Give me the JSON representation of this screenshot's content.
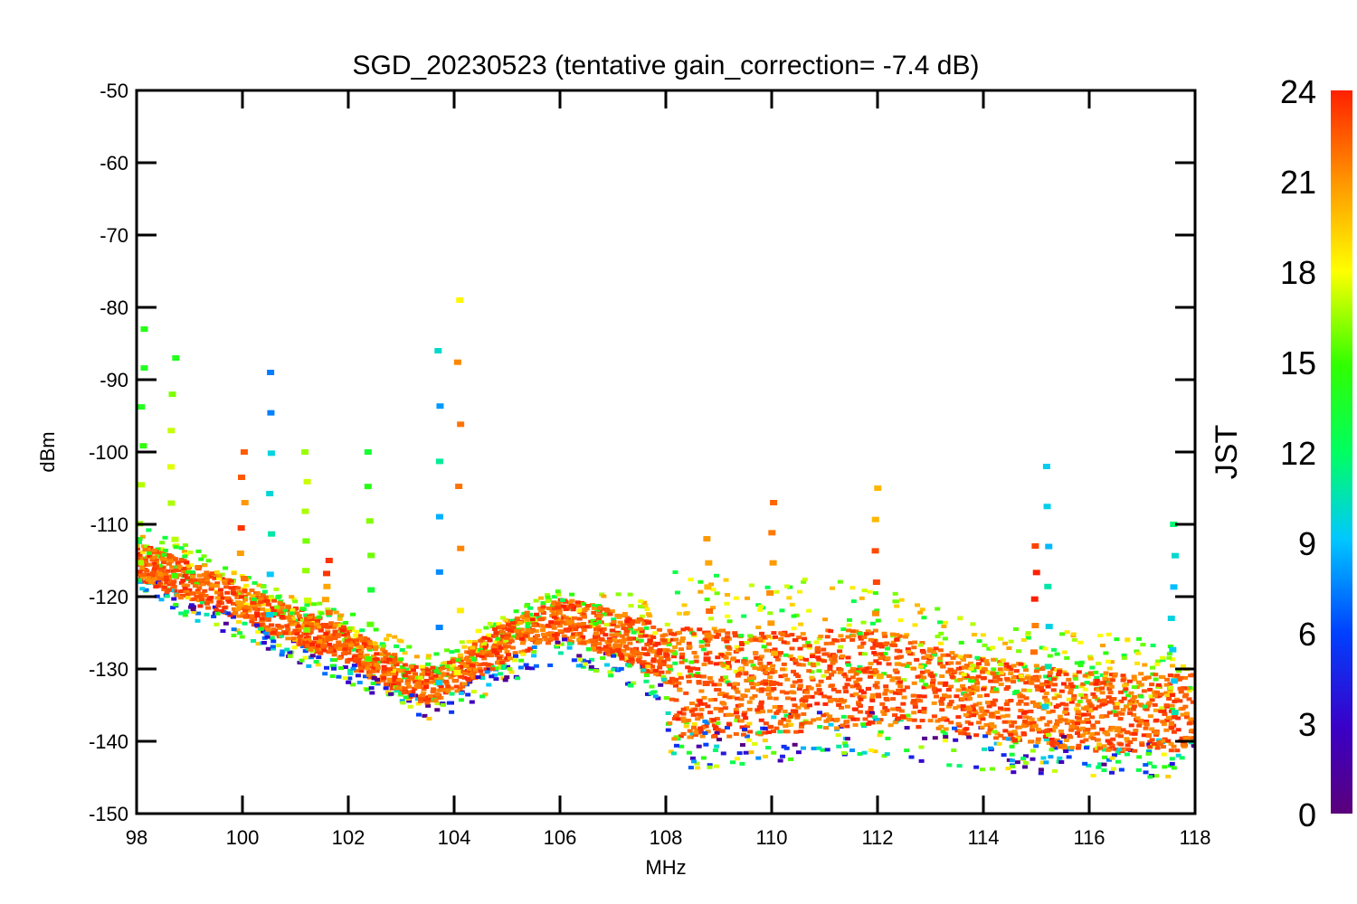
{
  "chart_data": {
    "type": "scatter",
    "title": "SGD_20230523 (tentative gain_correction= -7.4 dB)",
    "xlabel": "MHz",
    "ylabel": "dBm",
    "xlim": [
      98,
      118
    ],
    "ylim": [
      -150,
      -50
    ],
    "x_ticks": [
      "98",
      "100",
      "102",
      "104",
      "106",
      "108",
      "110",
      "112",
      "114",
      "116",
      "118"
    ],
    "y_ticks": [
      "-50",
      "-60",
      "-70",
      "-80",
      "-90",
      "-100",
      "-110",
      "-120",
      "-130",
      "-140",
      "-150"
    ],
    "grid": false,
    "colorbar": {
      "label": "JST",
      "range": [
        0,
        24
      ],
      "ticks": [
        "24",
        "21",
        "18",
        "15",
        "12",
        "9",
        "6",
        "3",
        "0"
      ],
      "colormap": "rainbow"
    },
    "series": [
      {
        "description_color_scale": "JST hour",
        "points_note": "dense scatter; representative envelope below",
        "baseline_envelope": {
          "x": [
            98,
            99,
            100,
            101,
            102,
            103,
            103.5,
            104,
            105,
            106,
            107,
            108,
            108.1,
            110,
            112,
            114,
            116,
            118
          ],
          "upper": [
            -110,
            -113,
            -117,
            -120,
            -122,
            -126,
            -128,
            -127,
            -122,
            -119,
            -119,
            -121,
            -116,
            -117,
            -118,
            -124,
            -125,
            -126
          ],
          "lower": [
            -119,
            -123,
            -126,
            -129,
            -132,
            -135,
            -137,
            -136,
            -132,
            -129,
            -131,
            -135,
            -144,
            -143,
            -142,
            -144,
            -145,
            -145
          ],
          "mid": [
            -115,
            -118,
            -121,
            -124,
            -127,
            -131,
            -132.5,
            -131,
            -126,
            -123,
            -125,
            -128,
            -132,
            -132,
            -131,
            -134,
            -136,
            -136
          ]
        },
        "spikes": [
          {
            "x": 98.1,
            "top": -83,
            "hour": 15
          },
          {
            "x": 98.7,
            "top": -87,
            "hour": 16
          },
          {
            "x": 100.0,
            "top": -100,
            "hour": 22
          },
          {
            "x": 100.5,
            "top": -89,
            "hour": 9
          },
          {
            "x": 101.2,
            "top": -100,
            "hour": 17
          },
          {
            "x": 101.6,
            "top": -115,
            "hour": 22
          },
          {
            "x": 102.4,
            "top": -100,
            "hour": 15
          },
          {
            "x": 103.7,
            "top": -86,
            "hour": 9
          },
          {
            "x": 104.1,
            "top": -79,
            "hour": 20
          },
          {
            "x": 108.8,
            "top": -112,
            "hour": 22
          },
          {
            "x": 110.0,
            "top": -107,
            "hour": 21
          },
          {
            "x": 112.0,
            "top": -105,
            "hour": 22
          },
          {
            "x": 115.0,
            "top": -113,
            "hour": 23
          },
          {
            "x": 115.2,
            "top": -102,
            "hour": 10
          },
          {
            "x": 117.6,
            "top": -110,
            "hour": 10
          }
        ]
      }
    ]
  },
  "colors": {
    "dominant_points": "#ff3300",
    "axes": "#000000",
    "background": "#ffffff"
  }
}
